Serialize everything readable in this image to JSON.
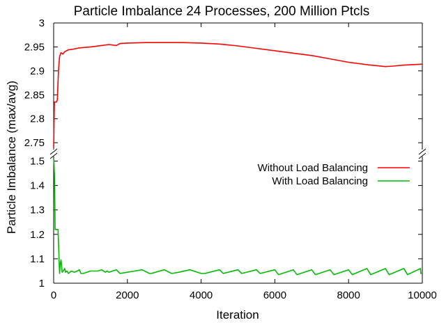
{
  "chart_data": {
    "type": "line",
    "title": "Particle Imbalance 24 Processes, 200 Million Ptcls",
    "xlabel": "Iteration",
    "ylabel": "Particle Imbalance (max/avg)",
    "xlim": [
      0,
      10000
    ],
    "y_axis_broken": true,
    "upper_panel": {
      "ylim": [
        2.74,
        3.0
      ],
      "yticks": [
        2.75,
        2.8,
        2.85,
        2.9,
        2.95,
        3.0
      ],
      "ytick_labels": [
        "2.75",
        "2.8",
        "2.85",
        "2.9",
        "2.95",
        "3"
      ]
    },
    "lower_panel": {
      "ylim": [
        1.0,
        1.51
      ],
      "yticks": [
        1.0,
        1.1,
        1.2,
        1.3,
        1.4,
        1.5
      ],
      "ytick_labels": [
        "1",
        "1.1",
        "1.2",
        "1.3",
        "1.4",
        "1.5"
      ]
    },
    "xticks": [
      0,
      2000,
      4000,
      6000,
      8000,
      10000
    ],
    "xtick_labels": [
      "0",
      "2000",
      "4000",
      "6000",
      "8000",
      "10000"
    ],
    "legend_position": "top-right",
    "grid": false,
    "series": [
      {
        "name": "Without Load Balancing",
        "color": "#ff0000",
        "panel": "upper",
        "x": [
          0,
          20,
          40,
          80,
          100,
          130,
          160,
          200,
          250,
          300,
          350,
          400,
          500,
          700,
          1000,
          1300,
          1500,
          1700,
          1800,
          2000,
          2500,
          3000,
          3500,
          4000,
          4500,
          5000,
          5500,
          6000,
          6500,
          7000,
          7500,
          8000,
          8500,
          9000,
          9200,
          9500,
          10000
        ],
        "y": [
          2.74,
          2.835,
          2.835,
          2.835,
          2.84,
          2.9,
          2.93,
          2.938,
          2.935,
          2.94,
          2.942,
          2.944,
          2.945,
          2.948,
          2.95,
          2.953,
          2.955,
          2.953,
          2.957,
          2.958,
          2.959,
          2.959,
          2.959,
          2.958,
          2.956,
          2.952,
          2.947,
          2.942,
          2.937,
          2.932,
          2.925,
          2.918,
          2.913,
          2.909,
          2.91,
          2.912,
          2.914
        ]
      },
      {
        "name": "With Load Balancing",
        "color": "#00bb00",
        "panel": "lower",
        "x": [
          0,
          10,
          20,
          30,
          40,
          60,
          80,
          120,
          160,
          180,
          200,
          230,
          260,
          300,
          320,
          360,
          400,
          480,
          560,
          640,
          700,
          740,
          800,
          900,
          1000,
          1100,
          1200,
          1300,
          1400,
          1450,
          1500,
          1700,
          1800,
          2000,
          2200,
          2400,
          2600,
          2650,
          3000,
          3200,
          3400,
          3700,
          4000,
          4100,
          4500,
          4600,
          5000,
          5100,
          5500,
          5600,
          6000,
          6100,
          6500,
          6600,
          7000,
          7100,
          7500,
          7600,
          8000,
          8100,
          8500,
          8600,
          9000,
          9100,
          9500,
          9600,
          9950,
          9960,
          10000
        ],
        "y": [
          1.51,
          1.49,
          1.45,
          1.35,
          1.22,
          1.22,
          1.22,
          1.22,
          1.04,
          1.08,
          1.095,
          1.045,
          1.05,
          1.06,
          1.045,
          1.05,
          1.04,
          1.05,
          1.045,
          1.05,
          1.055,
          1.04,
          1.04,
          1.045,
          1.05,
          1.05,
          1.05,
          1.055,
          1.045,
          1.05,
          1.045,
          1.055,
          1.04,
          1.045,
          1.05,
          1.055,
          1.04,
          1.04,
          1.055,
          1.04,
          1.045,
          1.055,
          1.04,
          1.04,
          1.055,
          1.04,
          1.055,
          1.04,
          1.055,
          1.04,
          1.055,
          1.035,
          1.055,
          1.035,
          1.055,
          1.035,
          1.055,
          1.035,
          1.055,
          1.035,
          1.06,
          1.035,
          1.06,
          1.035,
          1.06,
          1.035,
          1.06,
          1.04,
          1.04
        ]
      }
    ]
  }
}
